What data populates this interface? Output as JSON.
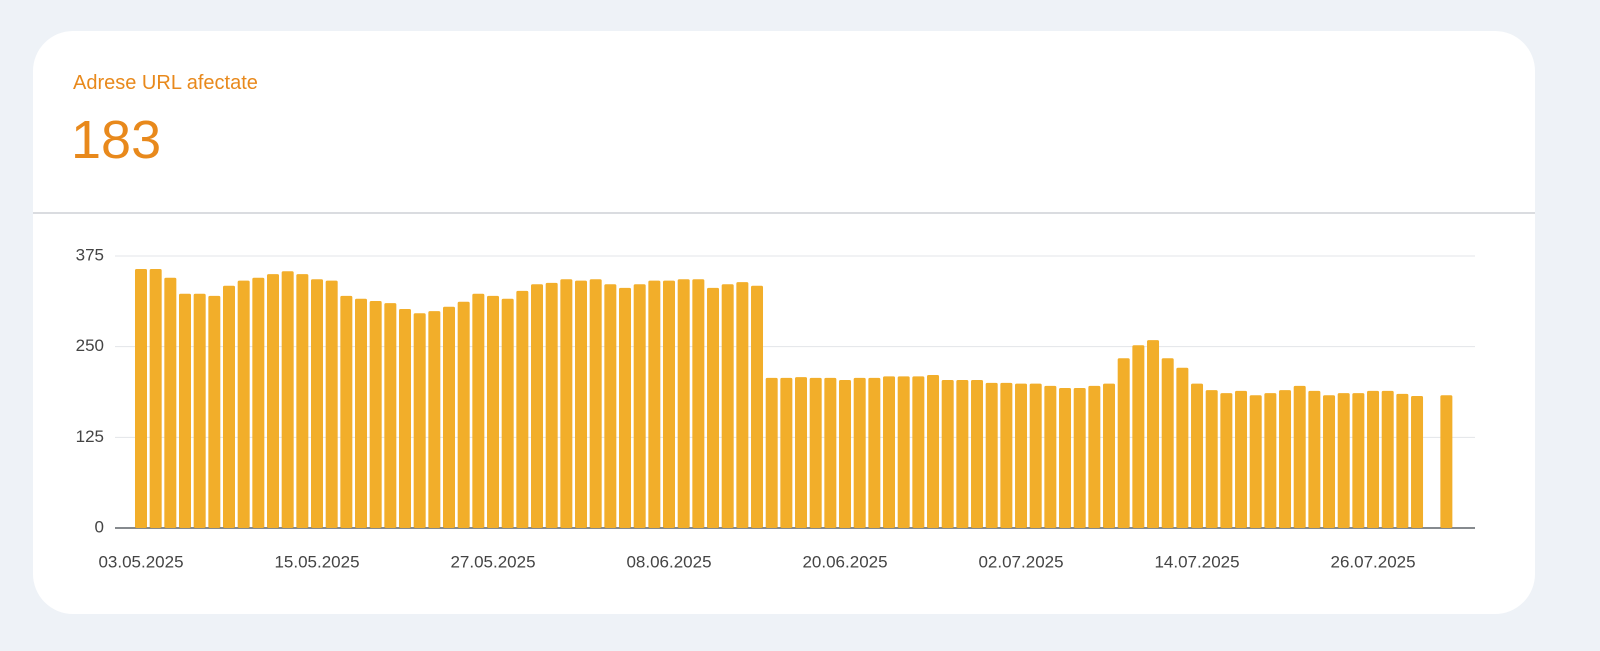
{
  "summary": {
    "label": "Adrese URL afectate",
    "value": 183
  },
  "chart_data": {
    "type": "bar",
    "color": "#f2ae2a",
    "categories": [
      "03.05.2025",
      null,
      null,
      null,
      null,
      null,
      null,
      null,
      null,
      null,
      null,
      null,
      "15.05.2025",
      null,
      null,
      null,
      null,
      null,
      null,
      null,
      null,
      null,
      null,
      null,
      "27.05.2025",
      null,
      null,
      null,
      null,
      null,
      null,
      null,
      null,
      null,
      null,
      null,
      "08.06.2025",
      null,
      null,
      null,
      null,
      null,
      null,
      null,
      null,
      null,
      null,
      null,
      "20.06.2025",
      null,
      null,
      null,
      null,
      null,
      null,
      null,
      null,
      null,
      null,
      null,
      "02.07.2025",
      null,
      null,
      null,
      null,
      null,
      null,
      null,
      null,
      null,
      null,
      null,
      "14.07.2025",
      null,
      null,
      null,
      null,
      null,
      null,
      null,
      null,
      null,
      null,
      null,
      "26.07.2025",
      null,
      null,
      null,
      null,
      null
    ],
    "values": [
      357,
      357,
      345,
      323,
      323,
      320,
      334,
      341,
      345,
      350,
      354,
      350,
      343,
      341,
      320,
      316,
      313,
      310,
      302,
      296,
      299,
      305,
      312,
      323,
      320,
      316,
      327,
      336,
      338,
      343,
      341,
      343,
      336,
      331,
      336,
      341,
      341,
      343,
      343,
      331,
      336,
      339,
      334,
      207,
      207,
      208,
      207,
      207,
      204,
      207,
      207,
      209,
      209,
      209,
      211,
      204,
      204,
      204,
      200,
      200,
      199,
      199,
      196,
      193,
      193,
      196,
      199,
      234,
      252,
      259,
      234,
      221,
      199,
      190,
      186,
      189,
      183,
      186,
      190,
      196,
      189,
      183,
      186,
      186,
      189,
      189,
      185,
      182,
      null,
      183
    ],
    "ylim": [
      0,
      375
    ],
    "yticks": [
      0,
      125,
      250,
      375
    ],
    "grid": true
  }
}
